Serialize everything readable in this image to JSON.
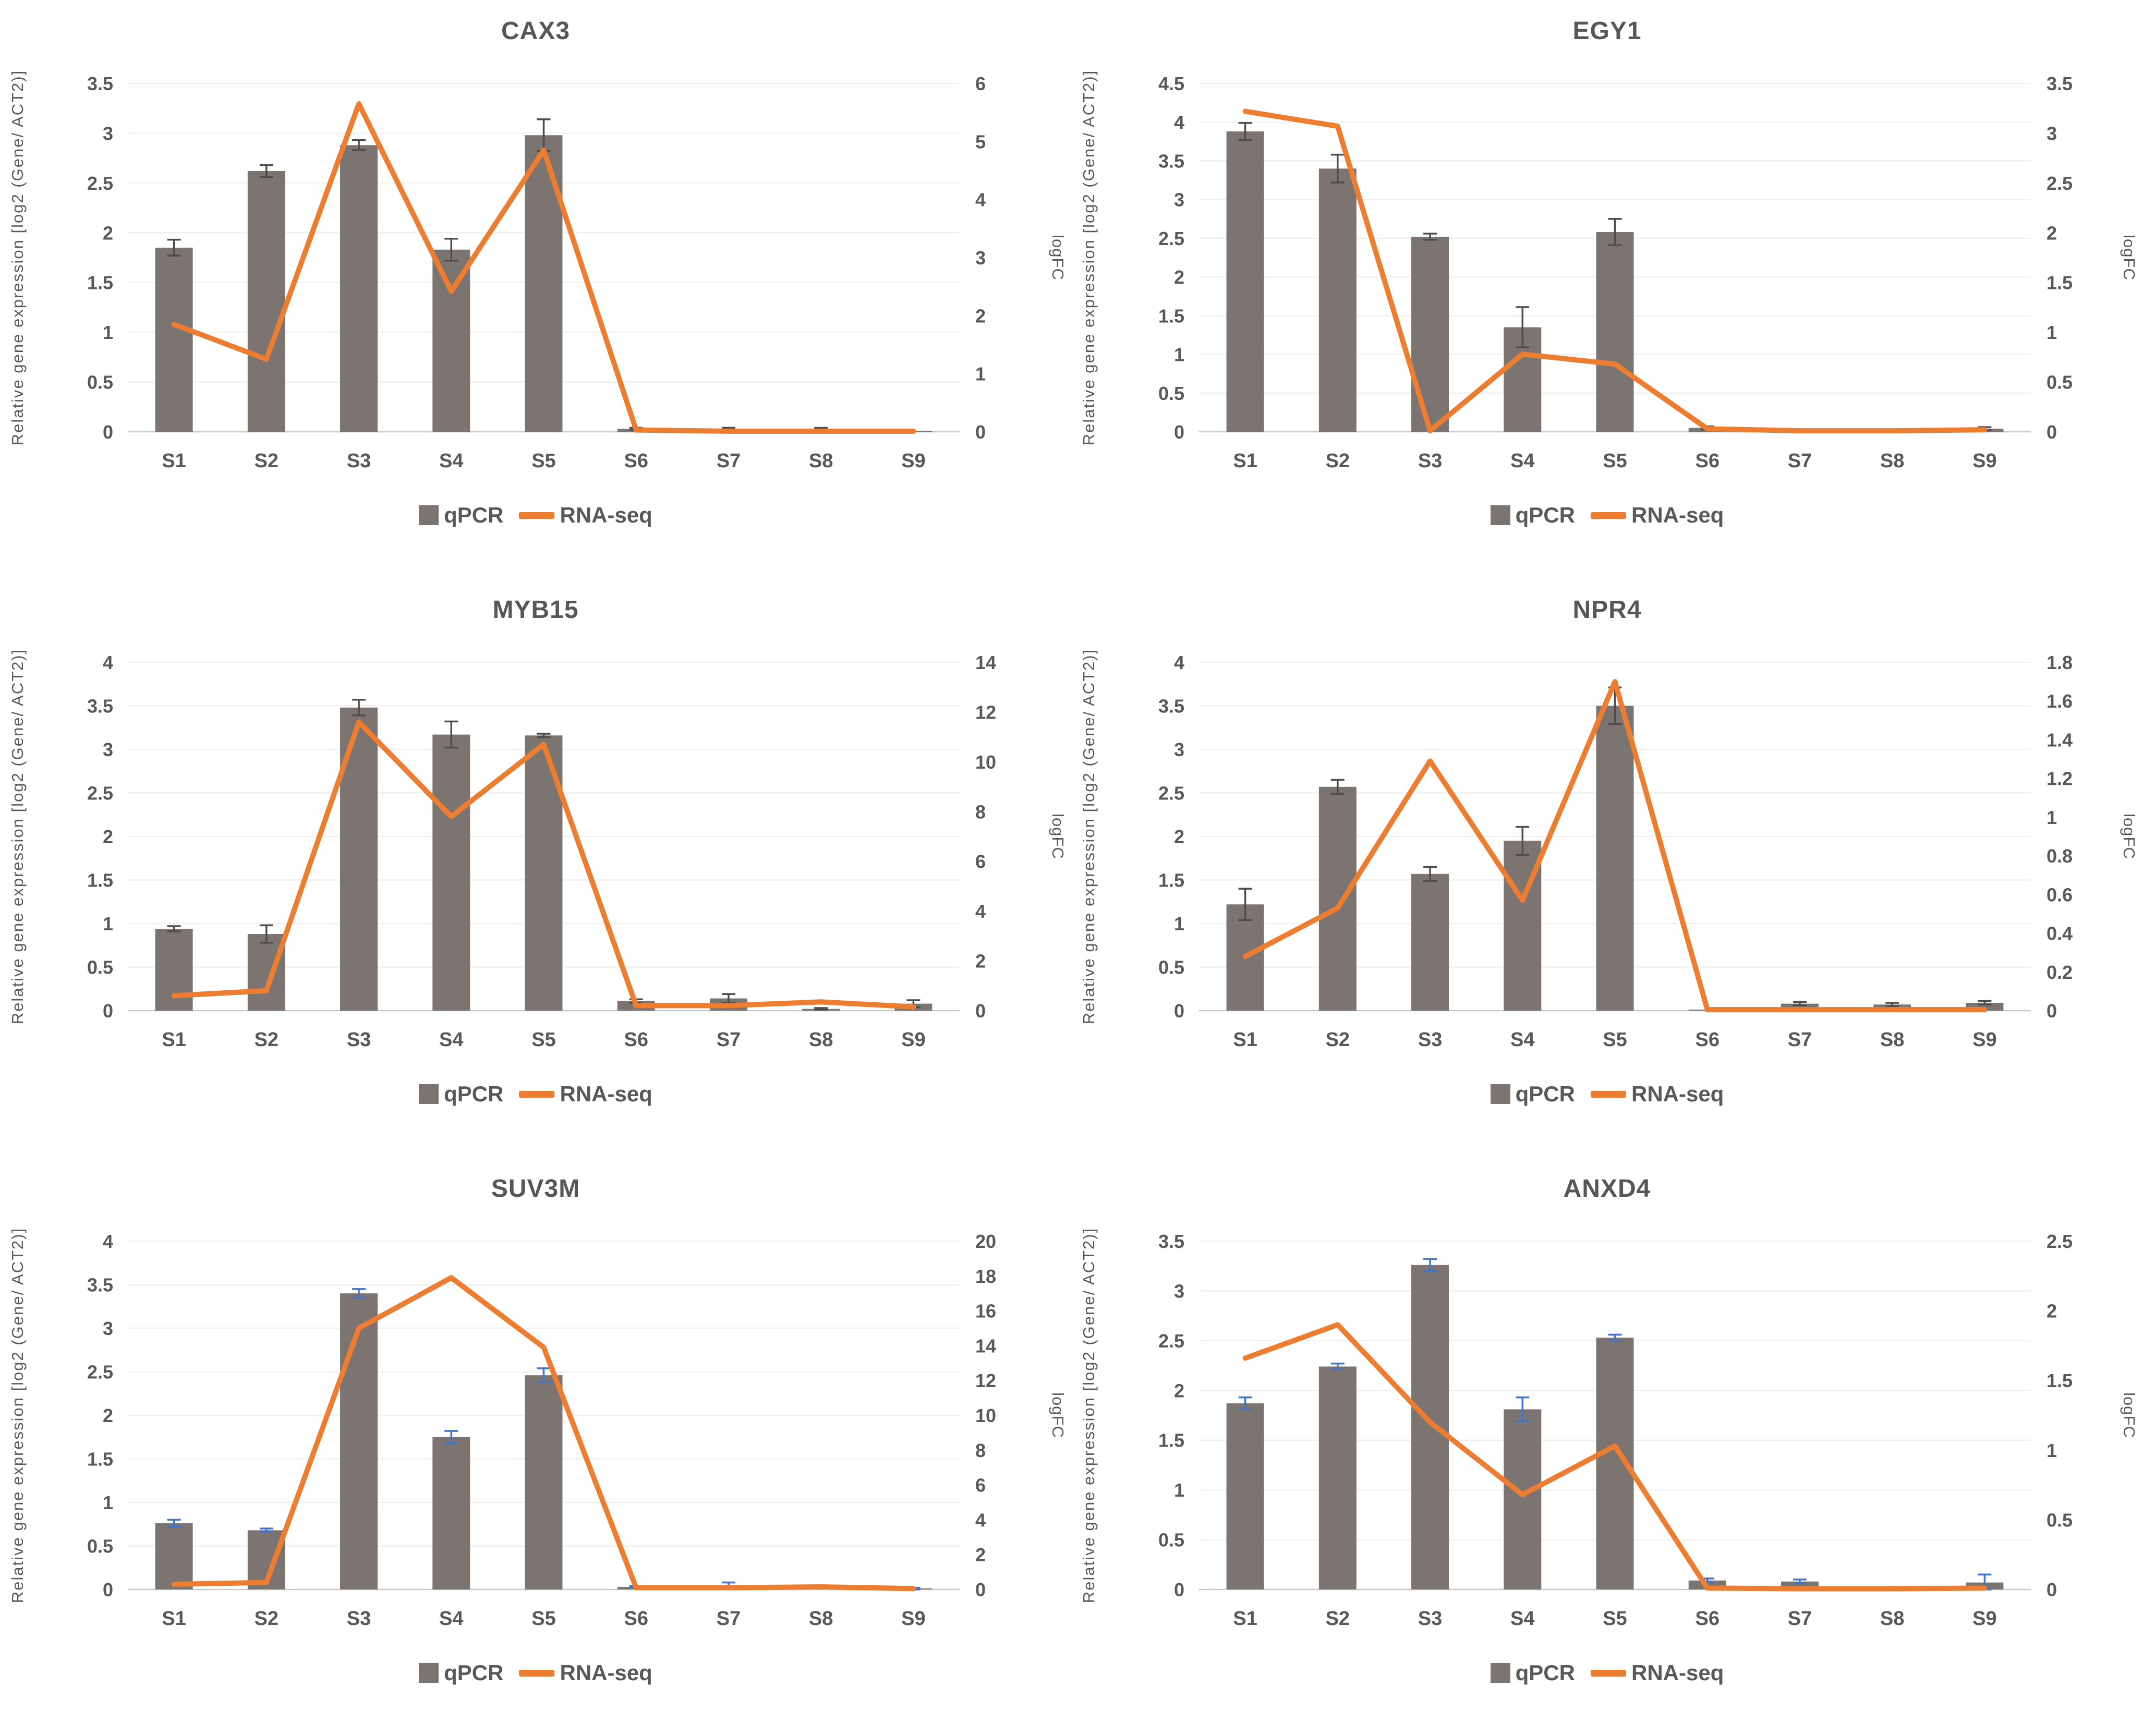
{
  "legend": {
    "qpcr_label": "qPCR",
    "rnaseq_label": "RNA-seq"
  },
  "colors": {
    "qpcr_bar": "#7B7470",
    "rnaseq_line": "#ED7D31",
    "error_dark": "#4D4D4D",
    "error_blue": "#4472C4",
    "text": "#595959",
    "gridline": "#F0F0F0",
    "axis_line": "#C9C9C9"
  },
  "chart_data": [
    {
      "type": "combo",
      "title": "CAX3",
      "categories": [
        "S1",
        "S2",
        "S3",
        "S4",
        "S5",
        "S6",
        "S7",
        "S8",
        "S9"
      ],
      "left_axis": {
        "label": "Relative gene expression [log2 (Gene/ ACT2)]",
        "min": 0,
        "max": 3.5,
        "ticks": [
          "0",
          "0.5",
          "1",
          "1.5",
          "2",
          "2.5",
          "3",
          "3.5"
        ]
      },
      "right_axis": {
        "label": "logFC",
        "min": 0,
        "max": 6,
        "ticks": [
          "0",
          "1",
          "2",
          "3",
          "4",
          "5",
          "6"
        ]
      },
      "grid": true,
      "legend_position": "bottom",
      "series": [
        {
          "name": "qPCR",
          "type": "bar",
          "axis": "left",
          "values": [
            1.85,
            2.62,
            2.88,
            1.83,
            2.98,
            0.03,
            0.03,
            0.03,
            0.01
          ],
          "errors": [
            0.08,
            0.06,
            0.05,
            0.11,
            0.16,
            0.01,
            0.01,
            0.01,
            0
          ],
          "error_color": "#4D4D4D"
        },
        {
          "name": "RNA-seq",
          "type": "line",
          "axis": "right",
          "values": [
            1.85,
            1.25,
            5.65,
            2.42,
            4.85,
            0.03,
            0.01,
            0.01,
            0.01
          ]
        }
      ]
    },
    {
      "type": "combo",
      "title": "EGY1",
      "categories": [
        "S1",
        "S2",
        "S3",
        "S4",
        "S5",
        "S6",
        "S7",
        "S8",
        "S9"
      ],
      "left_axis": {
        "label": "Relative gene expression [log2 (Gene/ ACT2)]",
        "min": 0,
        "max": 4.5,
        "ticks": [
          "0",
          "0.5",
          "1",
          "1.5",
          "2",
          "2.5",
          "3",
          "3.5",
          "4",
          "4.5"
        ]
      },
      "right_axis": {
        "label": "logFC",
        "min": 0,
        "max": 3.5,
        "ticks": [
          "0",
          "0.5",
          "1",
          "1.5",
          "2",
          "2.5",
          "3",
          "3.5"
        ]
      },
      "grid": true,
      "legend_position": "bottom",
      "series": [
        {
          "name": "qPCR",
          "type": "bar",
          "axis": "left",
          "values": [
            3.88,
            3.4,
            2.52,
            1.35,
            2.58,
            0.05,
            0.02,
            0.02,
            0.04
          ],
          "errors": [
            0.11,
            0.18,
            0.04,
            0.26,
            0.17,
            0.02,
            0,
            0,
            0.02
          ],
          "error_color": "#4D4D4D"
        },
        {
          "name": "RNA-seq",
          "type": "line",
          "axis": "right",
          "values": [
            3.22,
            3.07,
            0.01,
            0.78,
            0.68,
            0.03,
            0.01,
            0.01,
            0.02
          ]
        }
      ]
    },
    {
      "type": "combo",
      "title": "MYB15",
      "categories": [
        "S1",
        "S2",
        "S3",
        "S4",
        "S5",
        "S6",
        "S7",
        "S8",
        "S9"
      ],
      "left_axis": {
        "label": "Relative gene expression [log2 (Gene/ ACT2)]",
        "min": 0,
        "max": 4,
        "ticks": [
          "0",
          "0.5",
          "1",
          "1.5",
          "2",
          "2.5",
          "3",
          "3.5",
          "4"
        ]
      },
      "right_axis": {
        "label": "logFC",
        "min": 0,
        "max": 14,
        "ticks": [
          "0",
          "2",
          "4",
          "6",
          "8",
          "10",
          "12",
          "14"
        ]
      },
      "grid": true,
      "legend_position": "bottom",
      "series": [
        {
          "name": "qPCR",
          "type": "bar",
          "axis": "left",
          "values": [
            0.94,
            0.88,
            3.48,
            3.17,
            3.16,
            0.11,
            0.14,
            0.02,
            0.08
          ],
          "errors": [
            0.03,
            0.1,
            0.09,
            0.15,
            0.02,
            0.02,
            0.05,
            0.01,
            0.04
          ],
          "error_color": "#4D4D4D"
        },
        {
          "name": "RNA-seq",
          "type": "line",
          "axis": "right",
          "values": [
            0.6,
            0.8,
            11.6,
            7.8,
            10.7,
            0.2,
            0.2,
            0.35,
            0.15
          ]
        }
      ]
    },
    {
      "type": "combo",
      "title": "NPR4",
      "categories": [
        "S1",
        "S2",
        "S3",
        "S4",
        "S5",
        "S6",
        "S7",
        "S8",
        "S9"
      ],
      "left_axis": {
        "label": "Relative gene expression [log2 (Gene/ ACT2)]",
        "min": 0,
        "max": 4,
        "ticks": [
          "0",
          "0.5",
          "1",
          "1.5",
          "2",
          "2.5",
          "3",
          "3.5",
          "4"
        ]
      },
      "right_axis": {
        "label": "logFC",
        "min": 0,
        "max": 1.8,
        "ticks": [
          "0",
          "0.2",
          "0.4",
          "0.6",
          "0.8",
          "1",
          "1.2",
          "1.4",
          "1.6",
          "1.8"
        ]
      },
      "grid": true,
      "legend_position": "bottom",
      "series": [
        {
          "name": "qPCR",
          "type": "bar",
          "axis": "left",
          "values": [
            1.22,
            2.57,
            1.57,
            1.95,
            3.5,
            0.01,
            0.08,
            0.07,
            0.09
          ],
          "errors": [
            0.18,
            0.08,
            0.08,
            0.16,
            0.21,
            0,
            0.02,
            0.02,
            0.02
          ],
          "error_color": "#4D4D4D"
        },
        {
          "name": "RNA-seq",
          "type": "line",
          "axis": "right",
          "values": [
            0.28,
            0.53,
            1.29,
            0.57,
            1.7,
            0.005,
            0.005,
            0.005,
            0.005
          ]
        }
      ]
    },
    {
      "type": "combo",
      "title": "SUV3M",
      "categories": [
        "S1",
        "S2",
        "S3",
        "S4",
        "S5",
        "S6",
        "S7",
        "S8",
        "S9"
      ],
      "left_axis": {
        "label": "Relative gene expression [log2 (Gene/ ACT2)]",
        "min": 0,
        "max": 4,
        "ticks": [
          "0",
          "0.5",
          "1",
          "1.5",
          "2",
          "2.5",
          "3",
          "3.5",
          "4"
        ]
      },
      "right_axis": {
        "label": "logFC",
        "min": 0,
        "max": 20,
        "ticks": [
          "0",
          "2",
          "4",
          "6",
          "8",
          "10",
          "12",
          "14",
          "16",
          "18",
          "20"
        ]
      },
      "grid": true,
      "legend_position": "bottom",
      "series": [
        {
          "name": "qPCR",
          "type": "bar",
          "axis": "left",
          "values": [
            0.76,
            0.68,
            3.4,
            1.75,
            2.46,
            0.03,
            0.05,
            0.01,
            0.01
          ],
          "errors": [
            0.04,
            0.02,
            0.05,
            0.07,
            0.08,
            0.01,
            0.03,
            0,
            0.01
          ],
          "error_color": "#4472C4"
        },
        {
          "name": "RNA-seq",
          "type": "line",
          "axis": "right",
          "values": [
            0.3,
            0.4,
            15,
            17.9,
            13.9,
            0.1,
            0.1,
            0.15,
            0.05
          ]
        }
      ]
    },
    {
      "type": "combo",
      "title": "ANXD4",
      "categories": [
        "S1",
        "S2",
        "S3",
        "S4",
        "S5",
        "S6",
        "S7",
        "S8",
        "S9"
      ],
      "left_axis": {
        "label": "Relative gene expression [log2 (Gene/ ACT2)]",
        "min": 0,
        "max": 3.5,
        "ticks": [
          "0",
          "0.5",
          "1",
          "1.5",
          "2",
          "2.5",
          "3",
          "3.5"
        ]
      },
      "right_axis": {
        "label": "logFC",
        "min": 0,
        "max": 2.5,
        "ticks": [
          "0",
          "0.5",
          "1",
          "1.5",
          "2",
          "2.5"
        ]
      },
      "grid": true,
      "legend_position": "bottom",
      "series": [
        {
          "name": "qPCR",
          "type": "bar",
          "axis": "left",
          "values": [
            1.87,
            2.24,
            3.26,
            1.81,
            2.53,
            0.09,
            0.08,
            0,
            0.07
          ],
          "errors": [
            0.06,
            0.03,
            0.06,
            0.12,
            0.03,
            0.02,
            0.02,
            0,
            0.08
          ],
          "error_color": "#4472C4"
        },
        {
          "name": "RNA-seq",
          "type": "line",
          "axis": "right",
          "values": [
            1.66,
            1.9,
            1.2,
            0.68,
            1.03,
            0.01,
            0.005,
            0.005,
            0.01
          ]
        }
      ]
    }
  ]
}
